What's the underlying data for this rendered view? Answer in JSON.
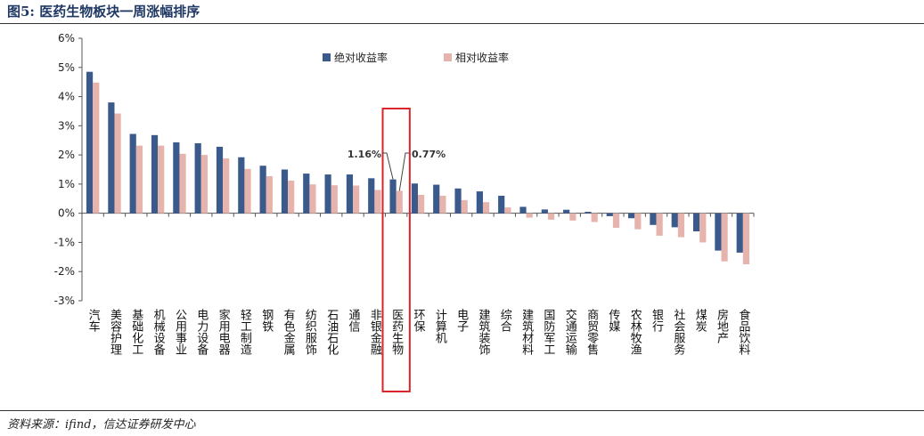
{
  "figure": {
    "title": "图5: 医药生物板块一周涨幅排序",
    "source": "资料来源：ifind，信达证券研发中心"
  },
  "chart_data": {
    "type": "bar",
    "categories": [
      "汽车",
      "美容护理",
      "基础化工",
      "机械设备",
      "公用事业",
      "电力设备",
      "家用电器",
      "轻工制造",
      "钢铁",
      "有色金属",
      "纺织服饰",
      "石油石化",
      "通信",
      "非银金融",
      "医药生物",
      "环保",
      "计算机",
      "电子",
      "建筑装饰",
      "综合",
      "建筑材料",
      "国防军工",
      "交通运输",
      "商贸零售",
      "传媒",
      "农林牧渔",
      "银行",
      "社会服务",
      "煤炭",
      "房地产",
      "食品饮料"
    ],
    "series": [
      {
        "name": "绝对收益率",
        "color": "#3a5a8c",
        "values": [
          4.85,
          3.8,
          2.72,
          2.68,
          2.43,
          2.4,
          2.28,
          1.92,
          1.63,
          1.5,
          1.36,
          1.33,
          1.33,
          1.2,
          1.16,
          1.02,
          0.98,
          0.85,
          0.75,
          0.6,
          0.22,
          0.13,
          0.12,
          0.05,
          -0.1,
          -0.17,
          -0.4,
          -0.48,
          -0.62,
          -1.28,
          -1.35
        ]
      },
      {
        "name": "相对收益率",
        "color": "#e6b3ad",
        "values": [
          4.48,
          3.42,
          2.32,
          2.32,
          2.04,
          2.0,
          1.88,
          1.52,
          1.27,
          1.12,
          0.99,
          0.96,
          0.95,
          0.8,
          0.77,
          0.63,
          0.6,
          0.45,
          0.38,
          0.2,
          -0.15,
          -0.22,
          -0.25,
          -0.3,
          -0.5,
          -0.55,
          -0.77,
          -0.82,
          -1.0,
          -1.65,
          -1.75
        ]
      }
    ],
    "y_ticks": [
      "6%",
      "5%",
      "4%",
      "3%",
      "2%",
      "1%",
      "0%",
      "-1%",
      "-2%",
      "-3%"
    ],
    "ylim": [
      -3,
      6
    ],
    "legend": {
      "placement": "top-center"
    },
    "highlight": {
      "category": "医药生物",
      "box_color": "#d9262b",
      "label_abs": "1.16%",
      "label_rel": "0.77%"
    },
    "grid": false
  }
}
